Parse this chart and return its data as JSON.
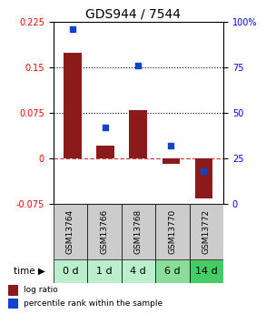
{
  "title": "GDS944 / 7544",
  "categories": [
    "GSM13764",
    "GSM13766",
    "GSM13768",
    "GSM13770",
    "GSM13772"
  ],
  "time_labels": [
    "0 d",
    "1 d",
    "4 d",
    "6 d",
    "14 d"
  ],
  "log_ratio": [
    0.175,
    0.022,
    0.08,
    -0.008,
    -0.065
  ],
  "percentile_rank": [
    96,
    42,
    76,
    32,
    18
  ],
  "ylim_left": [
    -0.075,
    0.225
  ],
  "ylim_right": [
    0,
    100
  ],
  "yticks_left": [
    -0.075,
    0,
    0.075,
    0.15,
    0.225
  ],
  "yticks_right": [
    0,
    25,
    50,
    75,
    100
  ],
  "hlines": [
    0.075,
    0.15
  ],
  "bar_color": "#8B1A1A",
  "dot_color": "#1144CC",
  "zero_line_color": "#CC4444",
  "hline_color": "#000000",
  "bg_plot": "#FFFFFF",
  "bg_gsm": "#CCCCCC",
  "bg_time_colors": [
    "#BBEECC",
    "#BBEECC",
    "#BBEECC",
    "#88DD99",
    "#44CC66"
  ],
  "legend_bar_color": "#8B1A1A",
  "legend_dot_color": "#1144CC",
  "title_fontsize": 10,
  "tick_fontsize": 7,
  "time_label_fontsize": 8,
  "gsm_fontsize": 6.5,
  "legend_fontsize": 6.5
}
